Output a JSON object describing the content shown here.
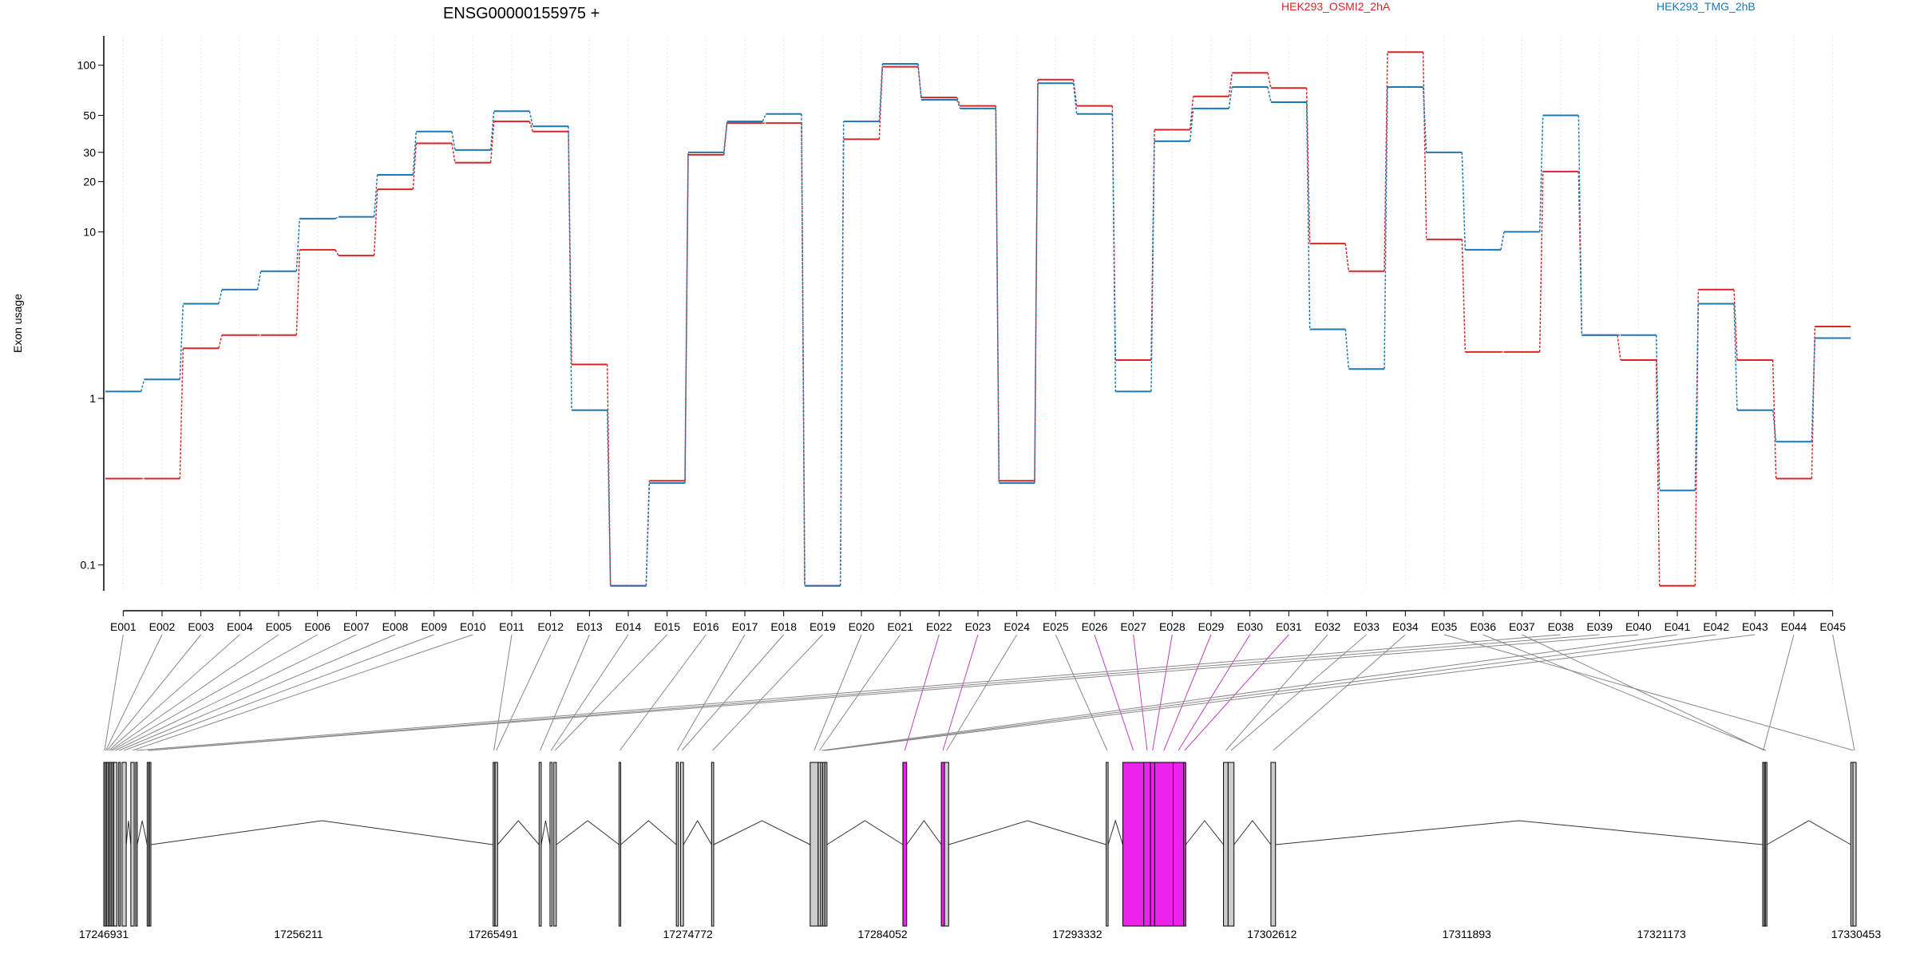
{
  "chart_data": {
    "type": "line",
    "title": "ENSG00000155975 +",
    "ylabel": "Exon usage",
    "y_scale": "log",
    "ylim": [
      0.07,
      150
    ],
    "y_ticks": [
      0.1,
      1,
      10,
      20,
      30,
      50,
      100
    ],
    "y_tick_labels": [
      "0.1",
      "1",
      "10",
      "20",
      "30",
      "50",
      "100"
    ],
    "grid": "vertical dotted",
    "legend_placement": "top",
    "categories": [
      "E001",
      "E002",
      "E003",
      "E004",
      "E005",
      "E006",
      "E007",
      "E008",
      "E009",
      "E010",
      "E011",
      "E012",
      "E013",
      "E014",
      "E015",
      "E016",
      "E017",
      "E018",
      "E019",
      "E020",
      "E021",
      "E022",
      "E023",
      "E024",
      "E025",
      "E026",
      "E027",
      "E028",
      "E029",
      "E030",
      "E031",
      "E032",
      "E033",
      "E034",
      "E035",
      "E036",
      "E037",
      "E038",
      "E039",
      "E040",
      "E041",
      "E042",
      "E043",
      "E044",
      "E045"
    ],
    "series": [
      {
        "name": "HEK293_OSMI2_2hA",
        "color": "#d62728",
        "values": [
          0.33,
          0.33,
          2.0,
          2.4,
          2.4,
          7.8,
          7.2,
          18,
          34,
          26,
          46,
          40,
          1.6,
          0.075,
          0.32,
          29,
          45,
          45,
          0.075,
          36,
          98,
          64,
          57,
          0.32,
          82,
          57,
          1.7,
          41,
          65,
          90,
          73,
          8.5,
          5.8,
          120,
          9,
          1.9,
          1.9,
          23,
          2.4,
          1.7,
          0.075,
          4.5,
          1.7,
          0.33,
          2.7
        ],
        "inclusive_segments": [
          false,
          false,
          false,
          false,
          false,
          false,
          false,
          false,
          false,
          false,
          false,
          false,
          false,
          false,
          false,
          false,
          false,
          false,
          false,
          false,
          false,
          false,
          false,
          false,
          false,
          false,
          false,
          false,
          false,
          false,
          false,
          false,
          false,
          false,
          false,
          false,
          false,
          false,
          false,
          false,
          false,
          false,
          false,
          false,
          false
        ]
      },
      {
        "name": "HEK293_TMG_2hB",
        "color": "#1f77b4",
        "values": [
          1.1,
          1.3,
          3.7,
          4.5,
          5.8,
          12,
          12.3,
          22,
          40,
          31,
          53,
          43,
          0.85,
          0.075,
          0.31,
          30,
          46,
          51,
          0.075,
          46,
          102,
          62,
          55,
          0.31,
          78,
          51,
          1.1,
          35,
          55,
          74,
          60,
          2.6,
          1.5,
          74,
          30,
          7.8,
          10,
          50,
          2.4,
          2.4,
          0.28,
          3.7,
          0.85,
          0.55,
          2.3
        ]
      }
    ],
    "genome": {
      "axis_ticks": [
        "17246931",
        "17256211",
        "17265491",
        "17274772",
        "17284052",
        "17293332",
        "17302612",
        "17311893",
        "17321173",
        "17330453"
      ],
      "start": 17246931,
      "end": 17330453,
      "highlight_color": "#ee22ee",
      "highlighted_exons": [
        "E022",
        "E023",
        "E026",
        "E027",
        "E028",
        "E029",
        "E030",
        "E031"
      ],
      "exon_coords": [
        [
          17246931,
          17247000
        ],
        [
          17247000,
          17247060
        ],
        [
          17247060,
          17247120
        ],
        [
          17247150,
          17247210
        ],
        [
          17247230,
          17247290
        ],
        [
          17247310,
          17247360
        ],
        [
          17247400,
          17247560
        ],
        [
          17247640,
          17247700
        ],
        [
          17247800,
          17248000
        ],
        [
          17248220,
          17248380
        ],
        [
          17265491,
          17265560
        ],
        [
          17265580,
          17265700
        ],
        [
          17267680,
          17267780
        ],
        [
          17268200,
          17268300
        ],
        [
          17268380,
          17268500
        ],
        [
          17271490,
          17271570
        ],
        [
          17274220,
          17274320
        ],
        [
          17274420,
          17274560
        ],
        [
          17275900,
          17276000
        ],
        [
          17280600,
          17280980
        ],
        [
          17280980,
          17281100
        ],
        [
          17285018,
          17285200
        ],
        [
          17286850,
          17287000
        ],
        [
          17287000,
          17287200
        ],
        [
          17294710,
          17294800
        ],
        [
          17295500,
          17296500
        ],
        [
          17296500,
          17296820
        ],
        [
          17296820,
          17297020
        ],
        [
          17297020,
          17297900
        ],
        [
          17297900,
          17298400
        ],
        [
          17298400,
          17298500
        ],
        [
          17300300,
          17300520
        ],
        [
          17300520,
          17300800
        ],
        [
          17302560,
          17302780
        ],
        [
          17330200,
          17330453
        ],
        [
          17326100,
          17326200
        ],
        [
          17326050,
          17326100
        ],
        [
          17248450,
          17248500
        ],
        [
          17249000,
          17249060
        ],
        [
          17249100,
          17249160
        ],
        [
          17281100,
          17281200
        ],
        [
          17281200,
          17281300
        ],
        [
          17281300,
          17281400
        ],
        [
          17326000,
          17326050
        ],
        [
          17330300,
          17330453
        ]
      ]
    }
  }
}
